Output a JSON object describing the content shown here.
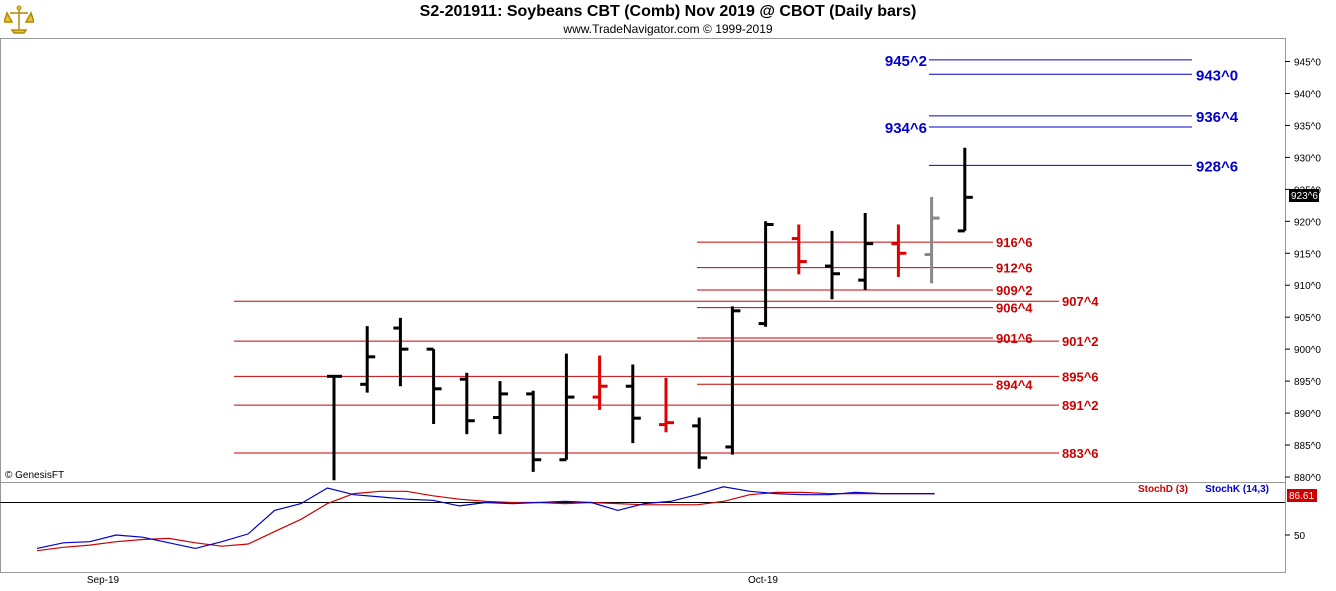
{
  "header": {
    "title": "S2-201911:  Soybeans CBT (Comb) Nov 2019 @ CBOT  (Daily bars)",
    "subtitle": "www.TradeNavigator.com © 1999-2019"
  },
  "copyright": "© GenesisFT",
  "colors": {
    "blue_levels": "#0000cc",
    "red_levels": "#cc0000",
    "bars": "#000000",
    "stoch_d": "#cc0000",
    "stoch_k": "#0000cc",
    "logo": "#d4a900"
  },
  "chart_data": [
    {
      "type": "ohlc",
      "title": "S2-201911:  Soybeans CBT (Comb) Nov 2019 @ CBOT  (Daily bars)",
      "x_ticks": [
        "Sep-19",
        "Oct-19"
      ],
      "y_ticks": [
        "880^0",
        "885^0",
        "890^0",
        "895^0",
        "900^0",
        "905^0",
        "910^0",
        "915^0",
        "920^0",
        "925^0",
        "930^0",
        "935^0",
        "940^0",
        "945^0"
      ],
      "ylim": [
        879.5,
        948.5
      ],
      "last_price_label": "923^6",
      "bars": [
        {
          "o": 895.75,
          "h": 895.9,
          "l": 879.5,
          "c": 895.75,
          "color": "black"
        },
        {
          "o": 894.5,
          "h": 903.6,
          "l": 893.2,
          "c": 898.8,
          "color": "black"
        },
        {
          "o": 903.3,
          "h": 904.9,
          "l": 894.2,
          "c": 900.0,
          "color": "black"
        },
        {
          "o": 900.0,
          "h": 900.0,
          "l": 888.3,
          "c": 893.8,
          "color": "black"
        },
        {
          "o": 895.3,
          "h": 896.3,
          "l": 886.7,
          "c": 888.8,
          "color": "black"
        },
        {
          "o": 889.3,
          "h": 895.0,
          "l": 886.7,
          "c": 893.0,
          "color": "black"
        },
        {
          "o": 893.0,
          "h": 893.5,
          "l": 880.8,
          "c": 882.7,
          "color": "black"
        },
        {
          "o": 882.7,
          "h": 899.3,
          "l": 882.7,
          "c": 892.5,
          "color": "black"
        },
        {
          "o": 892.5,
          "h": 899.0,
          "l": 890.5,
          "c": 894.2,
          "color": "red"
        },
        {
          "o": 894.2,
          "h": 897.6,
          "l": 885.3,
          "c": 889.2,
          "color": "black"
        },
        {
          "o": 888.2,
          "h": 895.5,
          "l": 887.0,
          "c": 888.5,
          "color": "red"
        },
        {
          "o": 888.0,
          "h": 889.3,
          "l": 881.3,
          "c": 883.0,
          "color": "black"
        },
        {
          "o": 884.7,
          "h": 906.7,
          "l": 883.5,
          "c": 906.0,
          "color": "black"
        },
        {
          "o": 904.0,
          "h": 920.0,
          "l": 903.5,
          "c": 919.5,
          "color": "black"
        },
        {
          "o": 917.3,
          "h": 919.5,
          "l": 911.7,
          "c": 913.7,
          "color": "red"
        },
        {
          "o": 913.0,
          "h": 918.5,
          "l": 907.8,
          "c": 911.8,
          "color": "black"
        },
        {
          "o": 910.8,
          "h": 921.3,
          "l": 909.3,
          "c": 916.5,
          "color": "black"
        },
        {
          "o": 916.5,
          "h": 919.5,
          "l": 911.3,
          "c": 915.0,
          "color": "red"
        },
        {
          "o": 914.8,
          "h": 923.8,
          "l": 910.3,
          "c": 920.5,
          "color": "gray"
        },
        {
          "o": 918.5,
          "h": 931.5,
          "l": 918.5,
          "c": 923.75,
          "color": "black"
        }
      ],
      "blue_levels": [
        {
          "label": "945^2",
          "value": 945.25,
          "label_side": "left"
        },
        {
          "label": "943^0",
          "value": 943.0,
          "label_side": "right"
        },
        {
          "label": "936^4",
          "value": 936.5,
          "label_side": "right"
        },
        {
          "label": "934^6",
          "value": 934.75,
          "label_side": "left"
        },
        {
          "label": "928^6",
          "value": 928.75,
          "label_side": "right"
        }
      ],
      "red_levels_short": [
        {
          "label": "916^6",
          "value": 916.75
        },
        {
          "label": "912^6",
          "value": 912.75
        },
        {
          "label": "909^2",
          "value": 909.25
        },
        {
          "label": "906^4",
          "value": 906.5
        },
        {
          "label": "901^6",
          "value": 901.75
        },
        {
          "label": "894^4",
          "value": 894.5
        }
      ],
      "red_levels_long": [
        {
          "label": "907^4",
          "value": 907.5
        },
        {
          "label": "901^2",
          "value": 901.25
        },
        {
          "label": "895^6",
          "value": 895.75
        },
        {
          "label": "891^2",
          "value": 891.25
        },
        {
          "label": "883^6",
          "value": 883.75
        }
      ]
    },
    {
      "type": "line",
      "ylim": [
        35,
        92
      ],
      "y_ticks": [
        "50"
      ],
      "last_value_label": "86.61",
      "series": [
        {
          "name": "StochD (3)",
          "values": [
            36,
            39,
            41,
            44,
            46,
            47,
            43,
            40,
            42,
            53,
            64,
            78,
            87,
            89,
            89,
            85,
            82,
            80,
            79,
            79,
            78,
            79,
            78,
            77,
            77,
            77,
            80,
            86,
            88,
            88,
            87,
            87,
            87,
            87,
            87
          ]
        },
        {
          "name": "StochK (14,3)",
          "values": [
            38,
            43,
            44,
            50,
            48,
            43,
            38,
            44,
            51,
            72,
            78,
            92,
            86,
            84,
            82,
            81,
            76,
            79,
            78,
            79,
            80,
            79,
            72,
            78,
            80,
            86,
            93,
            89,
            87,
            86,
            86,
            88,
            87,
            87,
            87
          ]
        }
      ]
    }
  ]
}
